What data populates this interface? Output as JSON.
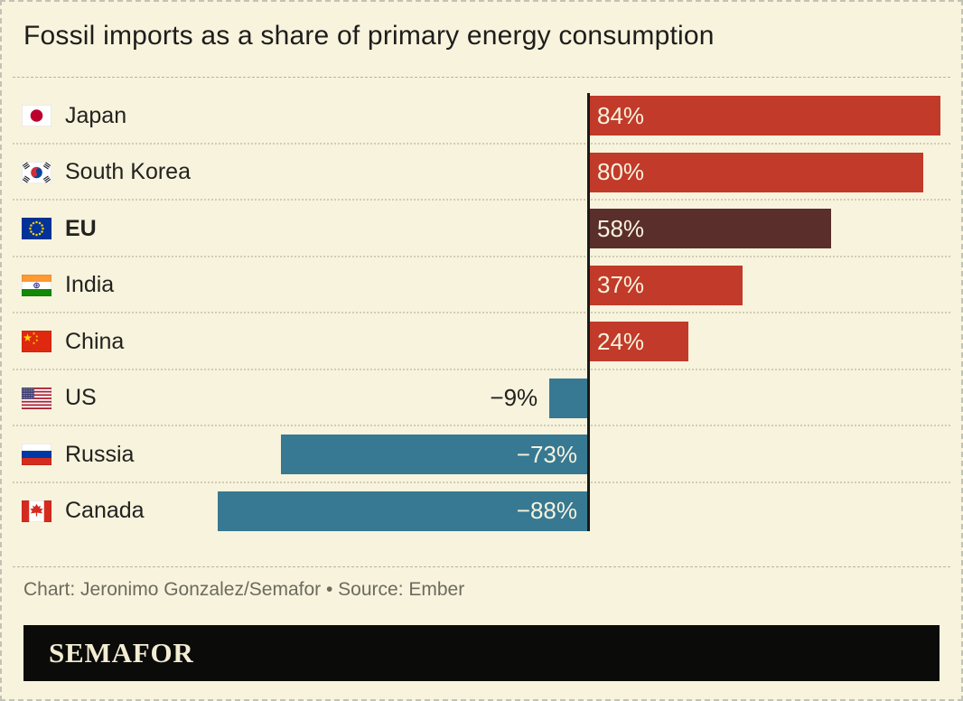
{
  "title": "Fossil imports as a share of primary energy consumption",
  "credit": "Chart: Jeronimo Gonzalez/Semafor • Source: Ember",
  "logo": "SEMAFOR",
  "colors": {
    "background": "#f8f3dd",
    "positive_bar": "#c23a2a",
    "highlight_bar": "#5a2e2b",
    "negative_bar": "#377992",
    "bar_label_light": "#f8f3dd",
    "bar_label_dark": "#22221f",
    "credit_text": "#6b6b5e",
    "axis_line": "#191917",
    "logo_bar": "#0b0b09",
    "logo_text": "#f3ecd2"
  },
  "chart_data": {
    "type": "bar",
    "orientation": "horizontal",
    "title": "Fossil imports as a share of primary energy consumption",
    "categories": [
      "Japan",
      "South Korea",
      "EU",
      "India",
      "China",
      "US",
      "Russia",
      "Canada"
    ],
    "values": [
      84,
      80,
      58,
      37,
      24,
      -9,
      -73,
      -88
    ],
    "labels": [
      "84%",
      "80%",
      "58%",
      "37%",
      "24%",
      "−9%",
      "−73%",
      "−88%"
    ],
    "flags": [
      "jp",
      "kr",
      "eu",
      "in",
      "cn",
      "us",
      "ru",
      "ca"
    ],
    "highlighted": "EU",
    "unit": "%",
    "xlim": [
      -88,
      84
    ],
    "baseline": 0,
    "grid": false,
    "legend": false
  }
}
